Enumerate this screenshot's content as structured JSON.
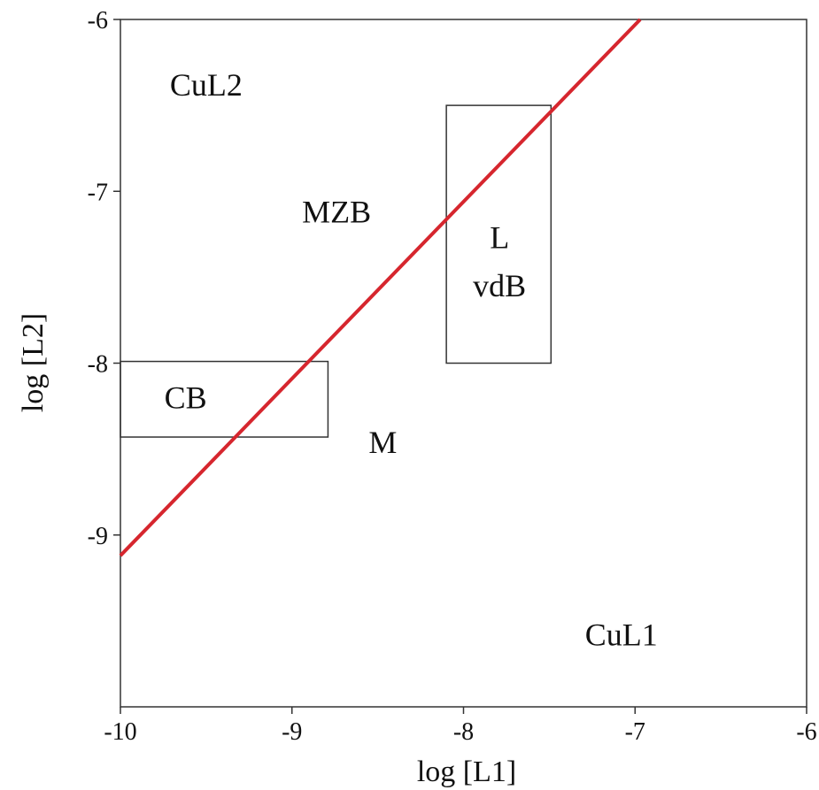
{
  "chart_data": {
    "type": "line",
    "xlabel": "log [L1]",
    "ylabel": "log [L2]",
    "xlim": [
      -10,
      -6
    ],
    "ylim": [
      -10,
      -6
    ],
    "x_ticks": [
      -10,
      -9,
      -8,
      -7,
      -6
    ],
    "x_tick_labels": [
      "-10",
      "-9",
      "-8",
      "-7",
      "-6"
    ],
    "y_ticks": [
      -6,
      -7,
      -8,
      -9
    ],
    "y_tick_labels": [
      "-6",
      "-7",
      "-8",
      "-9"
    ],
    "grid": false,
    "series": [
      {
        "x": [
          -10,
          -6.97
        ],
        "y": [
          -9.12,
          -6
        ],
        "color": "#d6262e"
      }
    ],
    "boxes": [
      {
        "label": "CB",
        "x": [
          -10,
          -8.79
        ],
        "y": [
          -8.43,
          -7.99
        ]
      },
      {
        "label": "L\nvdB",
        "x": [
          -8.1,
          -7.49
        ],
        "y": [
          -8.0,
          -6.5
        ]
      }
    ],
    "annotations": [
      {
        "text": "CuL2",
        "x": -9.5,
        "y": -6.38
      },
      {
        "text": "MZB",
        "x": -8.74,
        "y": -7.12
      },
      {
        "text": "L",
        "x": -7.79,
        "y": -7.27
      },
      {
        "text": "vdB",
        "x": -7.79,
        "y": -7.55
      },
      {
        "text": "CB",
        "x": -9.62,
        "y": -8.2
      },
      {
        "text": "M",
        "x": -8.47,
        "y": -8.46
      },
      {
        "text": "CuL1",
        "x": -7.08,
        "y": -9.58
      }
    ]
  }
}
